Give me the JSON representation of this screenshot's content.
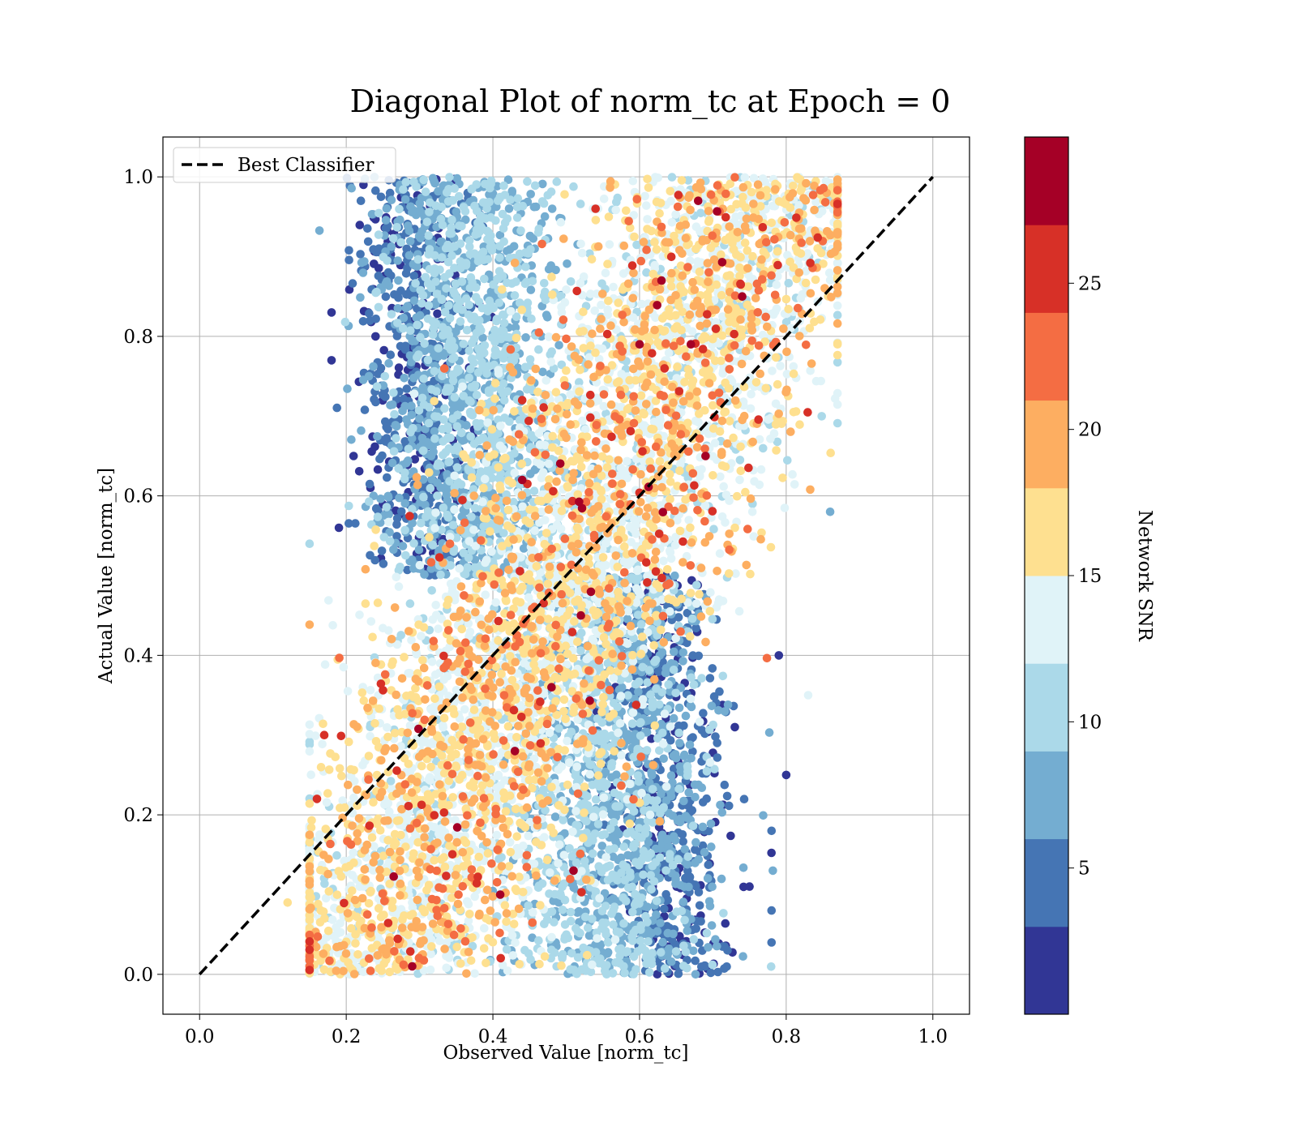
{
  "chart_data": {
    "type": "scatter",
    "title": "Diagonal Plot of norm_tc at Epoch = 0",
    "xlabel": "Observed Value [norm_tc]",
    "ylabel": "Actual Value [norm_tc]",
    "xlim": [
      -0.05,
      1.05
    ],
    "ylim": [
      -0.05,
      1.05
    ],
    "xticks": [
      "0.0",
      "0.2",
      "0.4",
      "0.6",
      "0.8",
      "1.0"
    ],
    "yticks": [
      "0.0",
      "0.2",
      "0.4",
      "0.6",
      "0.8",
      "1.0"
    ],
    "grid": true,
    "legend_position": "top-left",
    "reference_line": {
      "label": "Best Classifier",
      "style": "dashed",
      "color": "#000000",
      "x": [
        0.0,
        1.0
      ],
      "y": [
        0.0,
        1.0
      ]
    },
    "colorbar": {
      "label": "Network SNR",
      "range": [
        0,
        30
      ],
      "ticks": [
        "5",
        "10",
        "15",
        "20",
        "25"
      ],
      "colors": [
        "#313695",
        "#4575b4",
        "#74add1",
        "#abd9e9",
        "#e0f3f8",
        "#fee090",
        "#fdae61",
        "#f46d43",
        "#d73027",
        "#a50026"
      ]
    },
    "series": [
      {
        "colorvar": "Network SNR",
        "points": [
          {
            "x": 0.18,
            "y": 0.83,
            "c": 2
          },
          {
            "x": 0.18,
            "y": 0.77,
            "c": 2
          },
          {
            "x": 0.22,
            "y": 0.97,
            "c": 3
          },
          {
            "x": 0.24,
            "y": 0.8,
            "c": 2
          },
          {
            "x": 0.21,
            "y": 0.65,
            "c": 2
          },
          {
            "x": 0.23,
            "y": 0.83,
            "c": 2
          },
          {
            "x": 0.19,
            "y": 0.56,
            "c": 2
          },
          {
            "x": 0.17,
            "y": 0.3,
            "c": 26
          },
          {
            "x": 0.16,
            "y": 0.22,
            "c": 24
          },
          {
            "x": 0.29,
            "y": 0.01,
            "c": 28
          },
          {
            "x": 0.41,
            "y": 0.1,
            "c": 27
          },
          {
            "x": 0.43,
            "y": 0.28,
            "c": 28
          },
          {
            "x": 0.48,
            "y": 0.36,
            "c": 28
          },
          {
            "x": 0.51,
            "y": 0.13,
            "c": 28
          },
          {
            "x": 0.6,
            "y": 0.79,
            "c": 28
          },
          {
            "x": 0.69,
            "y": 0.65,
            "c": 28
          },
          {
            "x": 0.67,
            "y": 0.79,
            "c": 28
          },
          {
            "x": 0.74,
            "y": 0.85,
            "c": 28
          },
          {
            "x": 0.63,
            "y": 0.87,
            "c": 27
          },
          {
            "x": 0.54,
            "y": 0.96,
            "c": 26
          },
          {
            "x": 0.68,
            "y": 0.97,
            "c": 28
          },
          {
            "x": 0.44,
            "y": 0.62,
            "c": 27
          },
          {
            "x": 0.44,
            "y": 0.72,
            "c": 26
          },
          {
            "x": 0.52,
            "y": 0.45,
            "c": 27
          },
          {
            "x": 0.78,
            "y": 0.18,
            "c": 5
          },
          {
            "x": 0.78,
            "y": 0.08,
            "c": 3
          },
          {
            "x": 0.8,
            "y": 0.25,
            "c": 2
          },
          {
            "x": 0.79,
            "y": 0.4,
            "c": 2
          },
          {
            "x": 0.78,
            "y": 0.04,
            "c": 5
          },
          {
            "x": 0.86,
            "y": 0.58,
            "c": 8
          },
          {
            "x": 0.83,
            "y": 0.35,
            "c": 12
          },
          {
            "x": 0.75,
            "y": 0.11,
            "c": 2
          },
          {
            "x": 0.72,
            "y": 0.03,
            "c": 4
          },
          {
            "x": 0.73,
            "y": 0.31,
            "c": 2
          },
          {
            "x": 0.15,
            "y": 0.54,
            "c": 10
          },
          {
            "x": 0.12,
            "y": 0.09,
            "c": 15
          },
          {
            "x": 0.3,
            "y": 0.99,
            "c": 3
          },
          {
            "x": 0.84,
            "y": 0.93,
            "c": 16
          }
        ]
      }
    ],
    "distribution": {
      "n": 9000,
      "x_range": [
        0.15,
        0.87
      ],
      "y_range": [
        0.0,
        1.0
      ],
      "snr_mean": 12,
      "snr_std": 5
    }
  }
}
